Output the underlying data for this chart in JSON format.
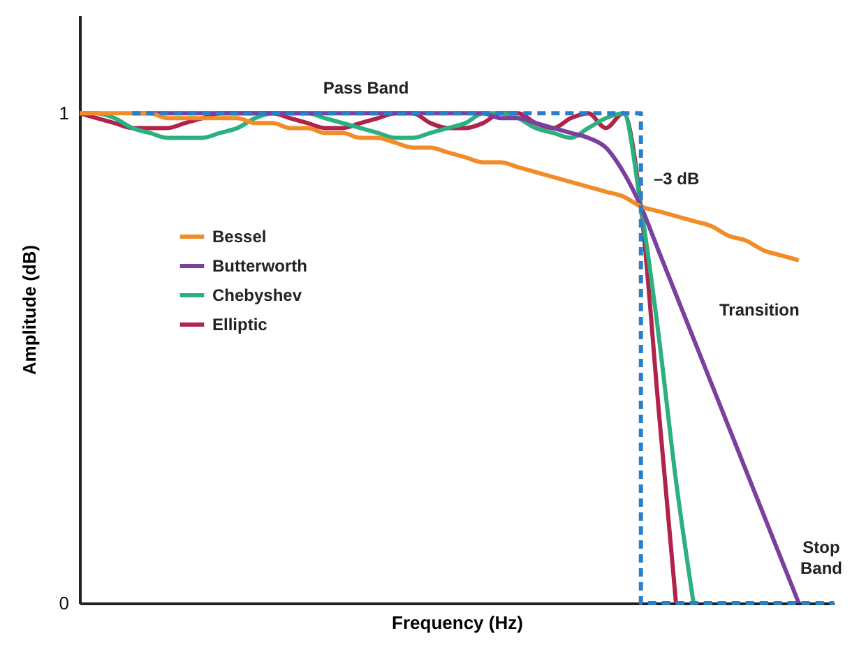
{
  "chart_data": {
    "type": "line",
    "xlabel": "Frequency (Hz)",
    "ylabel": "Amplitude (dB)",
    "categories": [
      null,
      null,
      null,
      null,
      null,
      null,
      null,
      null,
      null,
      null,
      null,
      null,
      null,
      null,
      null,
      null,
      null,
      null,
      null,
      null,
      null,
      null,
      null,
      null,
      null,
      null,
      null,
      null,
      null,
      null,
      null,
      null,
      null,
      null,
      null,
      null,
      null,
      null,
      null,
      null,
      null,
      null,
      null,
      null
    ],
    "ylim": [
      0,
      1.2
    ],
    "yticks": [
      0,
      1
    ],
    "grid": false,
    "legend": "top left",
    "marker": "none",
    "series": [
      {
        "name": "Bessel",
        "color": "#f28c28",
        "values": [
          1,
          1,
          1,
          1,
          1,
          0.99,
          0.99,
          0.99,
          0.99,
          0.99,
          0.98,
          0.98,
          0.97,
          0.97,
          0.96,
          0.96,
          0.95,
          0.95,
          0.94,
          0.93,
          0.93,
          0.92,
          0.91,
          0.9,
          0.9,
          0.89,
          0.88,
          0.87,
          0.86,
          0.85,
          0.84,
          0.83,
          0.81,
          0.8,
          0.79,
          0.78,
          0.77,
          0.75,
          0.74,
          0.72,
          0.71,
          0.7,
          null,
          null
        ]
      },
      {
        "name": "Butterworth",
        "color": "#7b3fa0",
        "values": [
          null,
          null,
          null,
          1,
          1,
          1,
          1,
          1,
          1,
          1,
          1,
          1,
          1,
          1,
          1,
          1,
          1,
          1,
          1,
          1,
          1,
          1,
          1,
          1,
          0.99,
          0.99,
          0.98,
          0.97,
          0.96,
          0.95,
          0.93,
          0.88,
          0.81,
          0.72,
          0.63,
          0.54,
          0.45,
          0.36,
          0.27,
          0.18,
          0.09,
          0,
          null,
          null
        ]
      },
      {
        "name": "Chebyshev",
        "color": "#2bb07f",
        "values": [
          1,
          1,
          0.99,
          0.97,
          0.96,
          0.95,
          0.95,
          0.95,
          0.96,
          0.97,
          0.99,
          1,
          1,
          1,
          0.99,
          0.98,
          0.97,
          0.96,
          0.95,
          0.95,
          0.96,
          0.97,
          0.98,
          1,
          1,
          0.99,
          0.97,
          0.96,
          0.95,
          0.97,
          0.99,
          1,
          0.81,
          0.55,
          0.25,
          0,
          null,
          null,
          null,
          null,
          null,
          null,
          null,
          null
        ]
      },
      {
        "name": "Elliptic",
        "color": "#b0234b",
        "values": [
          1,
          0.99,
          0.98,
          0.97,
          0.97,
          0.97,
          0.98,
          0.99,
          1,
          1,
          1,
          1,
          0.99,
          0.98,
          0.97,
          0.97,
          0.98,
          0.99,
          1,
          1,
          0.98,
          0.97,
          0.97,
          0.98,
          1,
          1,
          0.98,
          0.97,
          0.99,
          1,
          0.97,
          1,
          0.81,
          0.4,
          0,
          null,
          null,
          null,
          null,
          null,
          null,
          null,
          null,
          null
        ]
      },
      {
        "type": "step",
        "color": "#2a7fc9",
        "line_style": "dashed",
        "values": [
          null,
          null,
          null,
          1,
          1,
          1,
          1,
          1,
          1,
          1,
          1,
          1,
          1,
          1,
          1,
          1,
          1,
          1,
          1,
          1,
          1,
          1,
          1,
          1,
          1,
          1,
          1,
          1,
          1,
          1,
          1,
          1,
          0,
          0,
          0,
          0,
          0,
          0,
          0,
          0,
          0,
          0,
          0,
          0
        ]
      }
    ],
    "annotations": [
      "Pass Band",
      "–3 dB",
      "Transition",
      "Stop Band"
    ]
  }
}
